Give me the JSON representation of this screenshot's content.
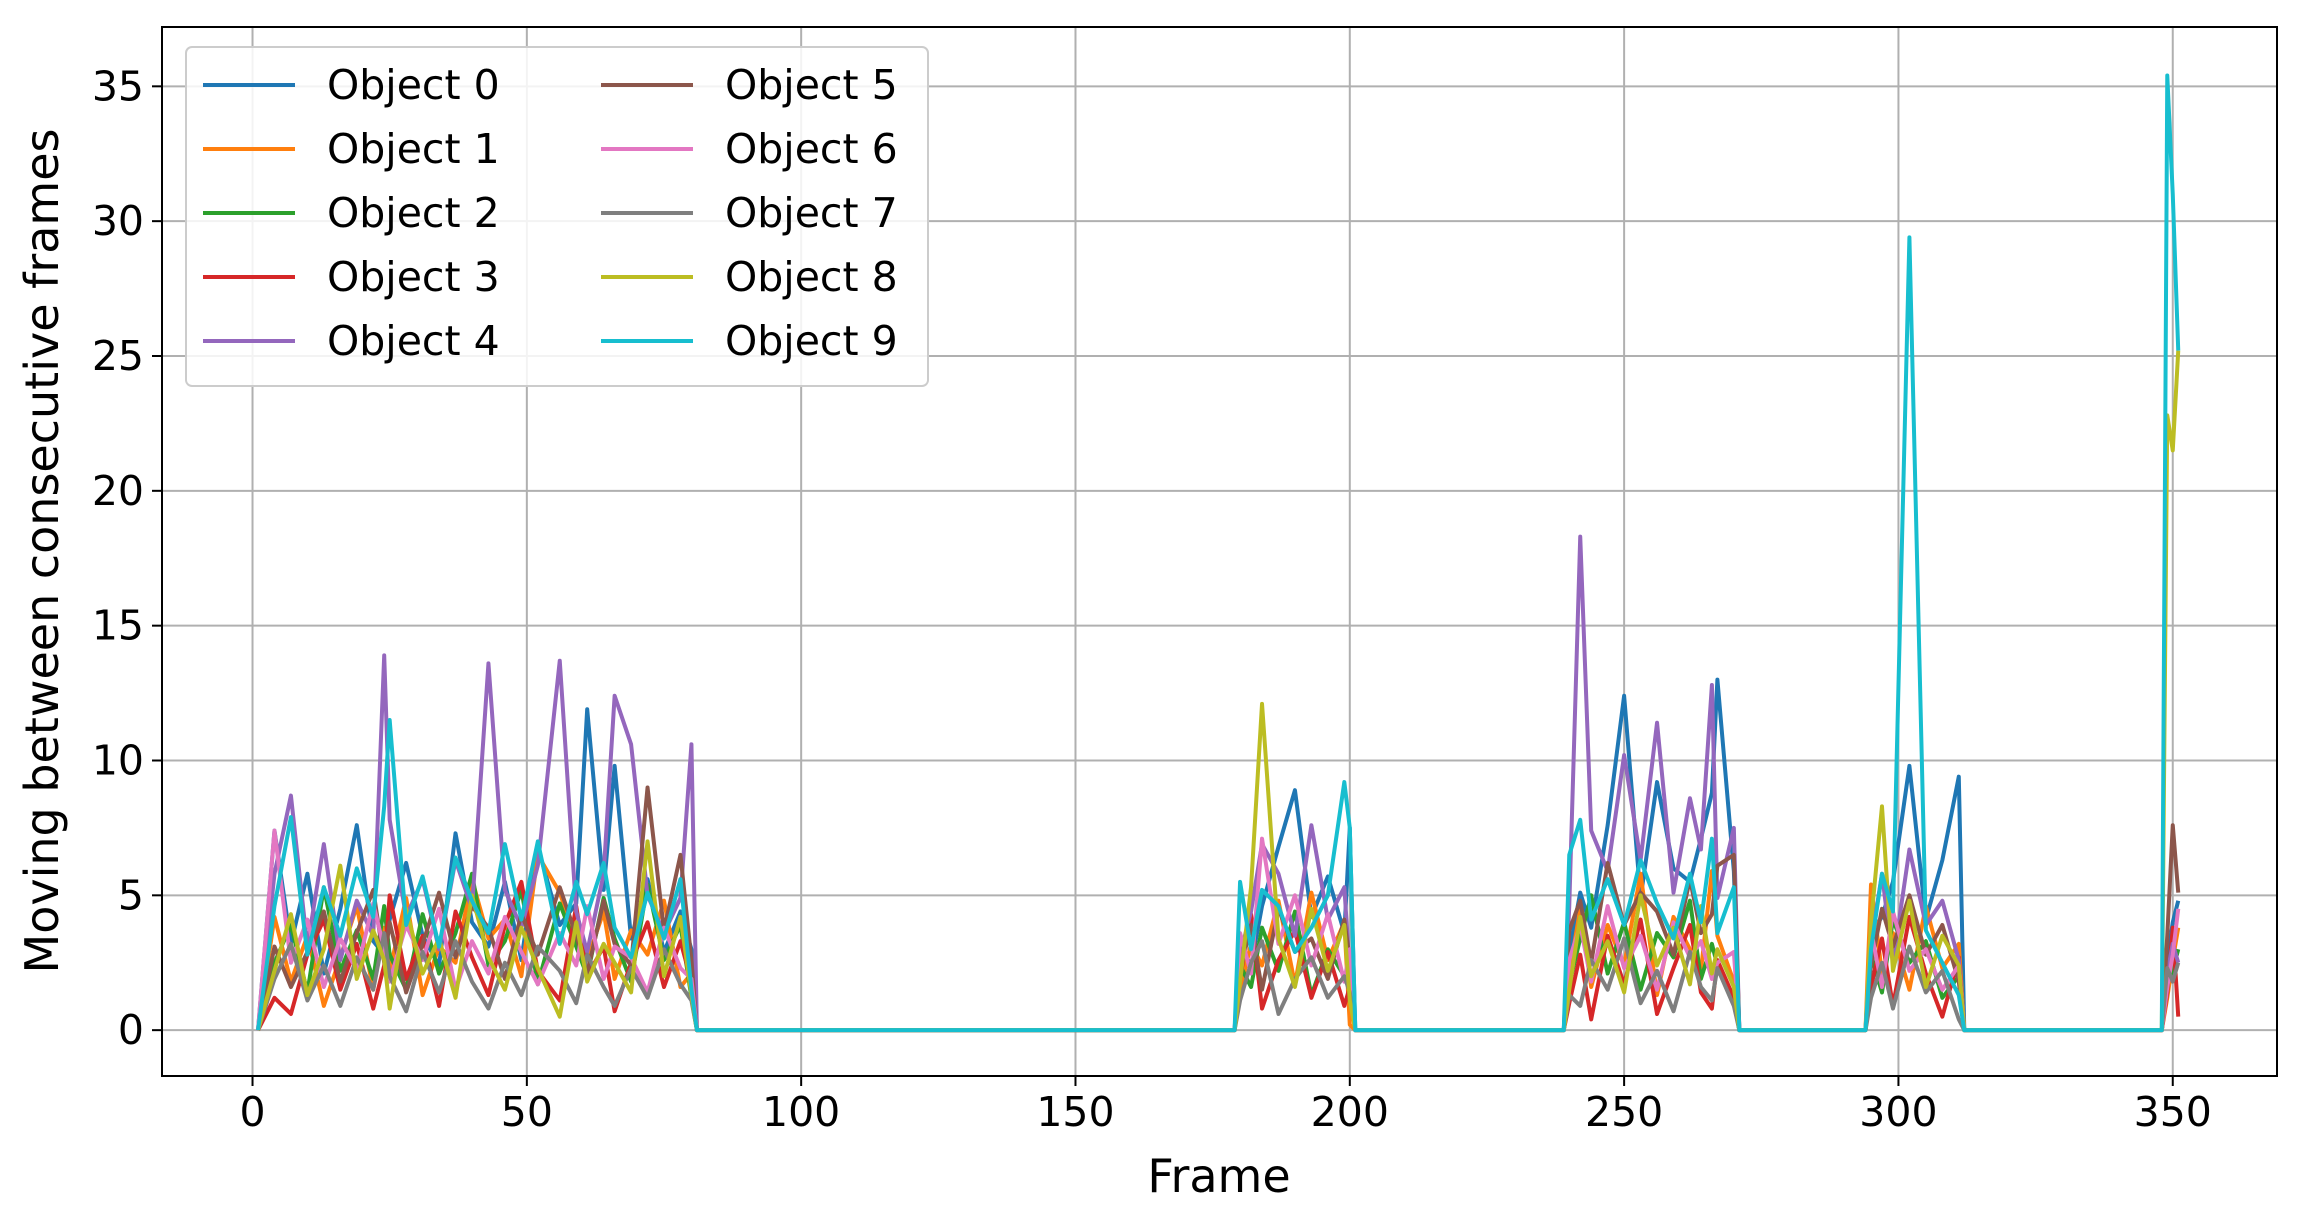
{
  "chart_data": {
    "type": "line",
    "xlabel": "Frame",
    "ylabel": "Moving between consecutive frames",
    "xlim": [
      -16.5,
      369
    ],
    "ylim": [
      -1.7,
      37.2
    ],
    "xticks": [
      0,
      50,
      100,
      150,
      200,
      250,
      300,
      350
    ],
    "yticks": [
      0,
      5,
      10,
      15,
      20,
      25,
      30,
      35
    ],
    "grid": true,
    "legend": "upper left",
    "legend_columns": 2,
    "x": [
      1,
      4,
      7,
      10,
      13,
      16,
      19,
      22,
      24,
      25,
      28,
      31,
      34,
      37,
      40,
      43,
      46,
      49,
      52,
      56,
      59,
      61,
      64,
      66,
      69,
      72,
      75,
      78,
      80,
      81,
      179,
      180,
      182,
      184,
      187,
      190,
      193,
      196,
      199,
      200,
      201,
      239,
      240,
      242,
      244,
      247,
      250,
      253,
      256,
      259,
      262,
      264,
      266,
      267,
      270,
      271,
      294,
      295,
      297,
      299,
      302,
      305,
      308,
      311,
      312,
      347,
      348,
      349,
      350,
      351
    ],
    "series": [
      {
        "name": "Object 0",
        "color": "#1f77b4",
        "values": [
          0,
          7.4,
          3.2,
          5.8,
          2.1,
          4.5,
          7.6,
          3.3,
          2.8,
          4.1,
          6.2,
          3.5,
          2.4,
          7.3,
          4.0,
          3.1,
          5.5,
          2.6,
          6.8,
          3.9,
          4.7,
          11.9,
          5.2,
          9.8,
          3.4,
          5.6,
          2.9,
          4.4,
          3.0,
          0,
          0,
          3.1,
          2.4,
          4.6,
          6.8,
          8.9,
          4.2,
          5.7,
          3.6,
          7.5,
          0,
          0,
          2.9,
          5.1,
          3.8,
          7.6,
          12.4,
          4.9,
          9.2,
          6.0,
          5.5,
          7.1,
          8.8,
          13.0,
          5.9,
          0,
          0,
          3.6,
          4.2,
          5.5,
          9.8,
          4.1,
          6.3,
          9.4,
          0,
          0,
          0,
          2.6,
          4.0,
          4.8
        ]
      },
      {
        "name": "Object 1",
        "color": "#ff7f0e",
        "values": [
          0,
          4.2,
          1.8,
          3.5,
          0.9,
          2.7,
          4.6,
          1.5,
          3.8,
          2.2,
          4.9,
          1.3,
          3.1,
          2.5,
          5.6,
          3.4,
          4.1,
          2.0,
          6.5,
          5.1,
          3.3,
          2.6,
          4.4,
          1.9,
          3.7,
          2.8,
          4.8,
          1.6,
          2.1,
          0,
          0,
          1.5,
          3.2,
          2.4,
          4.8,
          1.7,
          5.1,
          2.6,
          4.0,
          0.2,
          0,
          0,
          2.1,
          4.5,
          1.6,
          3.9,
          2.4,
          5.8,
          1.3,
          4.2,
          3.0,
          2.2,
          5.9,
          3.5,
          1.8,
          0,
          0,
          5.4,
          2.1,
          3.6,
          1.5,
          4.6,
          2.3,
          3.2,
          0,
          0,
          0,
          1.2,
          2.6,
          3.8
        ]
      },
      {
        "name": "Object 2",
        "color": "#2ca02c",
        "values": [
          0,
          2.5,
          3.9,
          1.4,
          5.3,
          2.2,
          3.7,
          1.9,
          4.6,
          2.8,
          1.5,
          4.3,
          2.1,
          3.6,
          5.8,
          2.4,
          3.3,
          5.2,
          1.7,
          4.7,
          3.1,
          2.0,
          4.9,
          3.4,
          1.8,
          5.4,
          2.6,
          3.9,
          1.2,
          0,
          0,
          2.4,
          1.6,
          3.8,
          2.2,
          4.4,
          1.3,
          3.0,
          2.0,
          1.5,
          0,
          0,
          1.7,
          3.4,
          5.0,
          2.1,
          4.0,
          1.5,
          3.6,
          2.7,
          4.8,
          1.9,
          3.2,
          2.4,
          1.1,
          0,
          0,
          2.8,
          1.4,
          4.1,
          2.5,
          3.3,
          1.2,
          2.0,
          0,
          0,
          0,
          1.8,
          2.2,
          3.0
        ]
      },
      {
        "name": "Object 3",
        "color": "#d62728",
        "values": [
          0,
          1.2,
          0.6,
          2.8,
          4.1,
          1.5,
          3.2,
          0.8,
          2.4,
          5.0,
          1.9,
          3.5,
          0.9,
          4.4,
          2.7,
          1.3,
          3.9,
          5.5,
          2.2,
          1.1,
          4.6,
          2.0,
          3.1,
          0.7,
          2.5,
          4.0,
          1.6,
          3.3,
          1.8,
          0,
          0,
          1.9,
          4.3,
          0.8,
          2.6,
          3.7,
          1.2,
          2.9,
          0.9,
          1.6,
          0,
          0,
          1.0,
          2.8,
          0.4,
          3.5,
          1.7,
          4.1,
          0.6,
          2.3,
          3.9,
          1.4,
          0.8,
          2.6,
          1.2,
          0,
          0,
          1.6,
          3.4,
          0.9,
          4.2,
          2.1,
          0.5,
          2.7,
          0,
          0,
          0,
          1.4,
          3.8,
          0.5
        ]
      },
      {
        "name": "Object 4",
        "color": "#9467bd",
        "values": [
          0,
          5.8,
          8.7,
          3.1,
          6.9,
          2.6,
          4.8,
          3.5,
          13.9,
          7.8,
          4.2,
          5.6,
          3.0,
          6.3,
          4.5,
          13.6,
          5.2,
          3.8,
          6.1,
          13.7,
          4.4,
          2.9,
          5.8,
          12.4,
          10.6,
          5.0,
          3.6,
          4.9,
          10.6,
          0,
          0,
          2.8,
          4.4,
          6.9,
          5.8,
          3.5,
          7.6,
          4.1,
          5.3,
          2.2,
          0,
          0,
          4.6,
          18.3,
          7.4,
          5.9,
          10.2,
          6.3,
          11.4,
          5.1,
          8.6,
          6.7,
          12.8,
          4.9,
          7.5,
          0,
          0,
          3.2,
          5.8,
          2.5,
          6.7,
          3.9,
          4.8,
          2.6,
          0,
          0,
          0,
          2.1,
          3.2,
          2.5
        ]
      },
      {
        "name": "Object 5",
        "color": "#8c564b",
        "values": [
          0,
          3.1,
          1.6,
          2.9,
          4.4,
          1.8,
          3.6,
          5.2,
          2.5,
          4.0,
          1.4,
          3.2,
          5.1,
          2.7,
          4.6,
          3.8,
          1.9,
          4.3,
          2.8,
          5.3,
          3.5,
          2.1,
          4.8,
          3.2,
          2.4,
          9.0,
          3.7,
          6.5,
          2.6,
          0,
          0,
          2.2,
          3.9,
          1.5,
          4.5,
          2.9,
          3.4,
          1.9,
          4.1,
          2.6,
          0,
          0,
          3.7,
          4.8,
          2.5,
          6.2,
          3.9,
          5.1,
          4.4,
          2.8,
          5.6,
          3.6,
          4.3,
          6.1,
          6.5,
          0,
          0,
          2.4,
          4.5,
          3.1,
          5.0,
          2.8,
          3.9,
          1.8,
          0,
          0,
          0,
          3.5,
          7.6,
          5.1
        ]
      },
      {
        "name": "Object 6",
        "color": "#e377c2",
        "values": [
          0,
          7.4,
          2.5,
          4.1,
          1.6,
          3.4,
          2.2,
          4.7,
          3.0,
          1.8,
          3.9,
          2.6,
          4.5,
          1.5,
          3.3,
          2.1,
          4.2,
          2.9,
          1.7,
          3.6,
          2.4,
          4.6,
          1.9,
          3.1,
          2.7,
          1.4,
          3.8,
          2.3,
          1.9,
          0,
          0,
          3.6,
          2.1,
          7.1,
          3.2,
          5.0,
          2.4,
          4.3,
          1.8,
          3.0,
          0,
          0,
          2.6,
          3.9,
          1.8,
          4.6,
          2.3,
          3.5,
          1.5,
          4.0,
          2.7,
          3.3,
          1.9,
          2.5,
          2.9,
          0,
          0,
          3.7,
          1.6,
          4.4,
          2.2,
          3.0,
          1.5,
          2.4,
          0,
          0,
          0,
          1.6,
          2.8,
          4.5
        ]
      },
      {
        "name": "Object 7",
        "color": "#7f7f7f",
        "values": [
          0,
          1.9,
          3.2,
          1.1,
          2.4,
          0.9,
          2.7,
          1.5,
          3.6,
          2.0,
          0.7,
          2.9,
          1.4,
          3.3,
          1.8,
          0.8,
          2.5,
          1.3,
          3.1,
          2.2,
          1.0,
          2.8,
          1.6,
          0.9,
          2.3,
          1.2,
          3.0,
          1.7,
          1.1,
          0,
          0,
          1.1,
          2.5,
          3.3,
          0.6,
          1.9,
          2.7,
          1.2,
          2.0,
          1.4,
          0,
          0,
          1.3,
          0.9,
          2.6,
          1.5,
          3.4,
          1.0,
          2.2,
          0.7,
          2.9,
          1.6,
          1.1,
          2.3,
          0.9,
          0,
          0,
          1.2,
          2.5,
          0.8,
          3.1,
          1.4,
          2.2,
          0.4,
          0,
          0,
          0,
          2.3,
          1.8,
          2.5
        ]
      },
      {
        "name": "Object 8",
        "color": "#bcbd22",
        "values": [
          0,
          2.2,
          4.3,
          1.3,
          3.0,
          6.1,
          1.9,
          3.7,
          2.6,
          0.8,
          4.5,
          2.1,
          3.4,
          1.2,
          5.0,
          2.7,
          1.5,
          3.8,
          2.3,
          0.5,
          4.0,
          1.8,
          3.2,
          2.5,
          1.4,
          7.0,
          2.0,
          4.2,
          1.3,
          0,
          0,
          1.8,
          5.3,
          12.1,
          3.4,
          1.6,
          4.5,
          2.2,
          3.9,
          1.1,
          0,
          0,
          1.5,
          4.2,
          2.0,
          3.3,
          1.4,
          5.0,
          2.4,
          3.8,
          1.7,
          4.6,
          2.1,
          3.0,
          1.6,
          0,
          0,
          4.0,
          8.3,
          2.2,
          4.8,
          1.6,
          3.5,
          2.4,
          0,
          0,
          0,
          22.8,
          21.5,
          25.2
        ]
      },
      {
        "name": "Object 9",
        "color": "#17becf",
        "values": [
          0,
          4.6,
          7.9,
          2.8,
          5.3,
          3.5,
          6.0,
          4.2,
          8.3,
          11.5,
          3.9,
          5.7,
          3.1,
          6.4,
          4.8,
          3.6,
          6.9,
          4.1,
          7.0,
          3.2,
          5.5,
          4.3,
          6.2,
          3.8,
          2.7,
          5.1,
          3.4,
          5.6,
          1.5,
          0,
          0,
          5.5,
          3.0,
          5.2,
          4.6,
          2.9,
          3.8,
          5.0,
          9.2,
          7.5,
          0,
          0,
          6.5,
          7.8,
          4.1,
          5.6,
          3.9,
          6.3,
          4.7,
          3.4,
          5.8,
          4.0,
          7.1,
          3.6,
          5.3,
          0,
          0,
          3.0,
          5.8,
          4.4,
          29.4,
          3.7,
          2.5,
          1.3,
          0,
          0,
          0,
          35.4,
          31.0,
          25.2
        ]
      }
    ]
  }
}
